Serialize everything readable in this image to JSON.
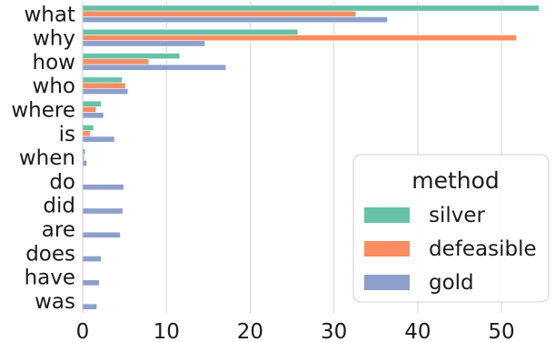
{
  "chart_data": {
    "type": "bar",
    "orientation": "horizontal",
    "categories": [
      "what",
      "why",
      "how",
      "who",
      "where",
      "is",
      "when",
      "do",
      "did",
      "are",
      "does",
      "have",
      "was"
    ],
    "series": [
      {
        "name": "silver",
        "color": "#66c2a5",
        "values": [
          54.5,
          25.7,
          11.6,
          4.7,
          2.2,
          1.3,
          0.3,
          0,
          0,
          0,
          0,
          0,
          0
        ]
      },
      {
        "name": "defeasible",
        "color": "#fc8d62",
        "values": [
          32.6,
          51.8,
          7.9,
          5.1,
          1.6,
          0.9,
          0.2,
          0,
          0,
          0,
          0,
          0,
          0
        ]
      },
      {
        "name": "gold",
        "color": "#8da0cb",
        "values": [
          36.4,
          14.6,
          17.1,
          5.4,
          2.5,
          3.8,
          0.5,
          4.9,
          4.8,
          4.5,
          2.2,
          2.0,
          1.7
        ]
      }
    ],
    "xticks": [
      0,
      10,
      20,
      30,
      40,
      50
    ],
    "xlim": [
      0,
      56.5
    ],
    "grid": "vertical",
    "legend": {
      "title": "method",
      "placement": "lower-right"
    }
  }
}
